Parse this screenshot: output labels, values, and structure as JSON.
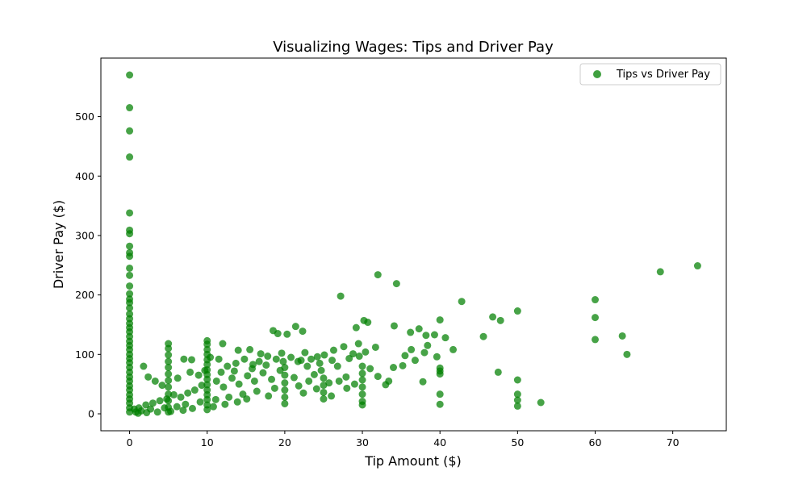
{
  "chart_data": {
    "type": "scatter",
    "title": "Visualizing Wages: Tips and Driver Pay",
    "xlabel": "Tip Amount ($)",
    "ylabel": "Driver Pay ($)",
    "xlim": [
      -3.7,
      76.9
    ],
    "ylim": [
      -28.5,
      598.5
    ],
    "xticks": [
      0,
      10,
      20,
      30,
      40,
      50,
      60,
      70
    ],
    "yticks": [
      0,
      100,
      200,
      300,
      400,
      500
    ],
    "grid": false,
    "legend_position": "top-right",
    "color": "#008000",
    "series": [
      {
        "name": "Tips vs Driver Pay",
        "points": [
          [
            0,
            570
          ],
          [
            0,
            515
          ],
          [
            0,
            476
          ],
          [
            0,
            432
          ],
          [
            0,
            338
          ],
          [
            0,
            309
          ],
          [
            0,
            303
          ],
          [
            0,
            282
          ],
          [
            0,
            271
          ],
          [
            0,
            265
          ],
          [
            0,
            245
          ],
          [
            0,
            233
          ],
          [
            0,
            215
          ],
          [
            0,
            202
          ],
          [
            0,
            193
          ],
          [
            0,
            187
          ],
          [
            0,
            178
          ],
          [
            0,
            168
          ],
          [
            0,
            160
          ],
          [
            0,
            152
          ],
          [
            0,
            145
          ],
          [
            0,
            138
          ],
          [
            0,
            130
          ],
          [
            0,
            122
          ],
          [
            0,
            115
          ],
          [
            0,
            108
          ],
          [
            0,
            100
          ],
          [
            0,
            93
          ],
          [
            0,
            86
          ],
          [
            0,
            78
          ],
          [
            0,
            70
          ],
          [
            0,
            62
          ],
          [
            0,
            55
          ],
          [
            0,
            47
          ],
          [
            0,
            40
          ],
          [
            0,
            32
          ],
          [
            0,
            25
          ],
          [
            0,
            18
          ],
          [
            0,
            10
          ],
          [
            0,
            3
          ],
          [
            27.2,
            198
          ],
          [
            32,
            234
          ],
          [
            34.4,
            219
          ],
          [
            42.8,
            189
          ],
          [
            60,
            192
          ],
          [
            68.4,
            239
          ],
          [
            73.2,
            249
          ],
          [
            46.8,
            163
          ],
          [
            47.8,
            157
          ],
          [
            50,
            173
          ],
          [
            60,
            162
          ],
          [
            40,
            158
          ],
          [
            30.2,
            157
          ],
          [
            30.7,
            154
          ],
          [
            21.4,
            147
          ],
          [
            22.3,
            139
          ],
          [
            18.5,
            140
          ],
          [
            19.1,
            135
          ],
          [
            20.3,
            134
          ],
          [
            29.2,
            145
          ],
          [
            34.1,
            148
          ],
          [
            36.2,
            137
          ],
          [
            37.3,
            143
          ],
          [
            38.2,
            132
          ],
          [
            39.3,
            133
          ],
          [
            40.7,
            128
          ],
          [
            45.6,
            130
          ],
          [
            63.5,
            131
          ],
          [
            60,
            125
          ],
          [
            41.7,
            108
          ],
          [
            64.1,
            100
          ],
          [
            40,
            77
          ],
          [
            40,
            72
          ],
          [
            40,
            67
          ],
          [
            47.5,
            70
          ],
          [
            50,
            57
          ],
          [
            50,
            33
          ],
          [
            50,
            23
          ],
          [
            50,
            13
          ],
          [
            40,
            33
          ],
          [
            40,
            16
          ],
          [
            53,
            19
          ],
          [
            37.8,
            54
          ],
          [
            33.4,
            55
          ],
          [
            35.2,
            81
          ],
          [
            36.3,
            108
          ],
          [
            38.4,
            115
          ],
          [
            39.6,
            96
          ],
          [
            31.7,
            112
          ],
          [
            30.4,
            104
          ],
          [
            29.5,
            118
          ],
          [
            28.8,
            101
          ],
          [
            27.6,
            113
          ],
          [
            26.3,
            107
          ],
          [
            25.1,
            99
          ],
          [
            24.2,
            96
          ],
          [
            23.4,
            92
          ],
          [
            22.6,
            103
          ],
          [
            21.7,
            88
          ],
          [
            20.8,
            95
          ],
          [
            19.6,
            102
          ],
          [
            18.9,
            92
          ],
          [
            17.8,
            97
          ],
          [
            16.7,
            88
          ],
          [
            15.9,
            83
          ],
          [
            14.8,
            92
          ],
          [
            13.7,
            85
          ],
          [
            12.6,
            80
          ],
          [
            11.5,
            92
          ],
          [
            10.4,
            95
          ],
          [
            10,
            123
          ],
          [
            10,
            117
          ],
          [
            10,
            108
          ],
          [
            10,
            100
          ],
          [
            10,
            91
          ],
          [
            10,
            83
          ],
          [
            10,
            74
          ],
          [
            10,
            66
          ],
          [
            10,
            58
          ],
          [
            10,
            49
          ],
          [
            10,
            40
          ],
          [
            10,
            32
          ],
          [
            10,
            24
          ],
          [
            10,
            15
          ],
          [
            10,
            7
          ],
          [
            5,
            118
          ],
          [
            5,
            110
          ],
          [
            5,
            99
          ],
          [
            5,
            88
          ],
          [
            5,
            78
          ],
          [
            5,
            67
          ],
          [
            5,
            56
          ],
          [
            5,
            45
          ],
          [
            5,
            33
          ],
          [
            5,
            22
          ],
          [
            5,
            11
          ],
          [
            5,
            3
          ],
          [
            7,
            92
          ],
          [
            8,
            91
          ],
          [
            12,
            118
          ],
          [
            14,
            107
          ],
          [
            15.5,
            108
          ],
          [
            16.9,
            101
          ],
          [
            20,
            78
          ],
          [
            20,
            65
          ],
          [
            20,
            52
          ],
          [
            20,
            40
          ],
          [
            20,
            28
          ],
          [
            20,
            17
          ],
          [
            25,
            60
          ],
          [
            25,
            48
          ],
          [
            25,
            36
          ],
          [
            25,
            25
          ],
          [
            26,
            30
          ],
          [
            30,
            80
          ],
          [
            30,
            68
          ],
          [
            30,
            57
          ],
          [
            30,
            45
          ],
          [
            30,
            33
          ],
          [
            30,
            21
          ],
          [
            30,
            15
          ],
          [
            29,
            50
          ],
          [
            28,
            43
          ],
          [
            27,
            55
          ],
          [
            31,
            76
          ],
          [
            32,
            63
          ],
          [
            33,
            49
          ],
          [
            34,
            78
          ],
          [
            35.5,
            98
          ],
          [
            36.8,
            90
          ],
          [
            38,
            103
          ],
          [
            26.8,
            80
          ],
          [
            24.7,
            73
          ],
          [
            23.8,
            66
          ],
          [
            22.9,
            80
          ],
          [
            21.2,
            61
          ],
          [
            19.4,
            73
          ],
          [
            18.3,
            58
          ],
          [
            17.2,
            69
          ],
          [
            16.1,
            55
          ],
          [
            15.2,
            64
          ],
          [
            14.1,
            50
          ],
          [
            13.2,
            60
          ],
          [
            12.1,
            45
          ],
          [
            11.2,
            55
          ],
          [
            9.3,
            48
          ],
          [
            8.4,
            40
          ],
          [
            7.5,
            35
          ],
          [
            6.6,
            28
          ],
          [
            5.7,
            32
          ],
          [
            4.8,
            25
          ],
          [
            3.9,
            22
          ],
          [
            3,
            18
          ],
          [
            2.1,
            15
          ],
          [
            1.2,
            10
          ],
          [
            0.6,
            8
          ],
          [
            1.8,
            80
          ],
          [
            2.4,
            62
          ],
          [
            3.3,
            55
          ],
          [
            4.2,
            48
          ],
          [
            6.2,
            60
          ],
          [
            7.8,
            70
          ],
          [
            8.9,
            65
          ],
          [
            9.7,
            73
          ],
          [
            11.8,
            70
          ],
          [
            13.5,
            72
          ],
          [
            15.8,
            76
          ],
          [
            17.6,
            82
          ],
          [
            19.8,
            88
          ],
          [
            22.1,
            90
          ],
          [
            24.5,
            85
          ],
          [
            26.1,
            90
          ],
          [
            28.3,
            93
          ],
          [
            29.6,
            97
          ],
          [
            23.1,
            55
          ],
          [
            21.8,
            47
          ],
          [
            18.7,
            43
          ],
          [
            16.4,
            38
          ],
          [
            14.6,
            33
          ],
          [
            12.8,
            28
          ],
          [
            11.1,
            24
          ],
          [
            9.1,
            20
          ],
          [
            7.2,
            16
          ],
          [
            6.1,
            12
          ],
          [
            4.5,
            10
          ],
          [
            2.7,
            8
          ],
          [
            1.5,
            5
          ],
          [
            0.8,
            3
          ],
          [
            22.4,
            35
          ],
          [
            24.1,
            42
          ],
          [
            25.7,
            52
          ],
          [
            27.9,
            62
          ],
          [
            17.9,
            30
          ],
          [
            15.1,
            25
          ],
          [
            13.9,
            20
          ],
          [
            12.3,
            16
          ],
          [
            10.8,
            12
          ],
          [
            8.1,
            9
          ],
          [
            6.9,
            6
          ],
          [
            5.3,
            4
          ],
          [
            3.6,
            3
          ],
          [
            2.2,
            2
          ],
          [
            1.1,
            1
          ]
        ]
      }
    ]
  }
}
